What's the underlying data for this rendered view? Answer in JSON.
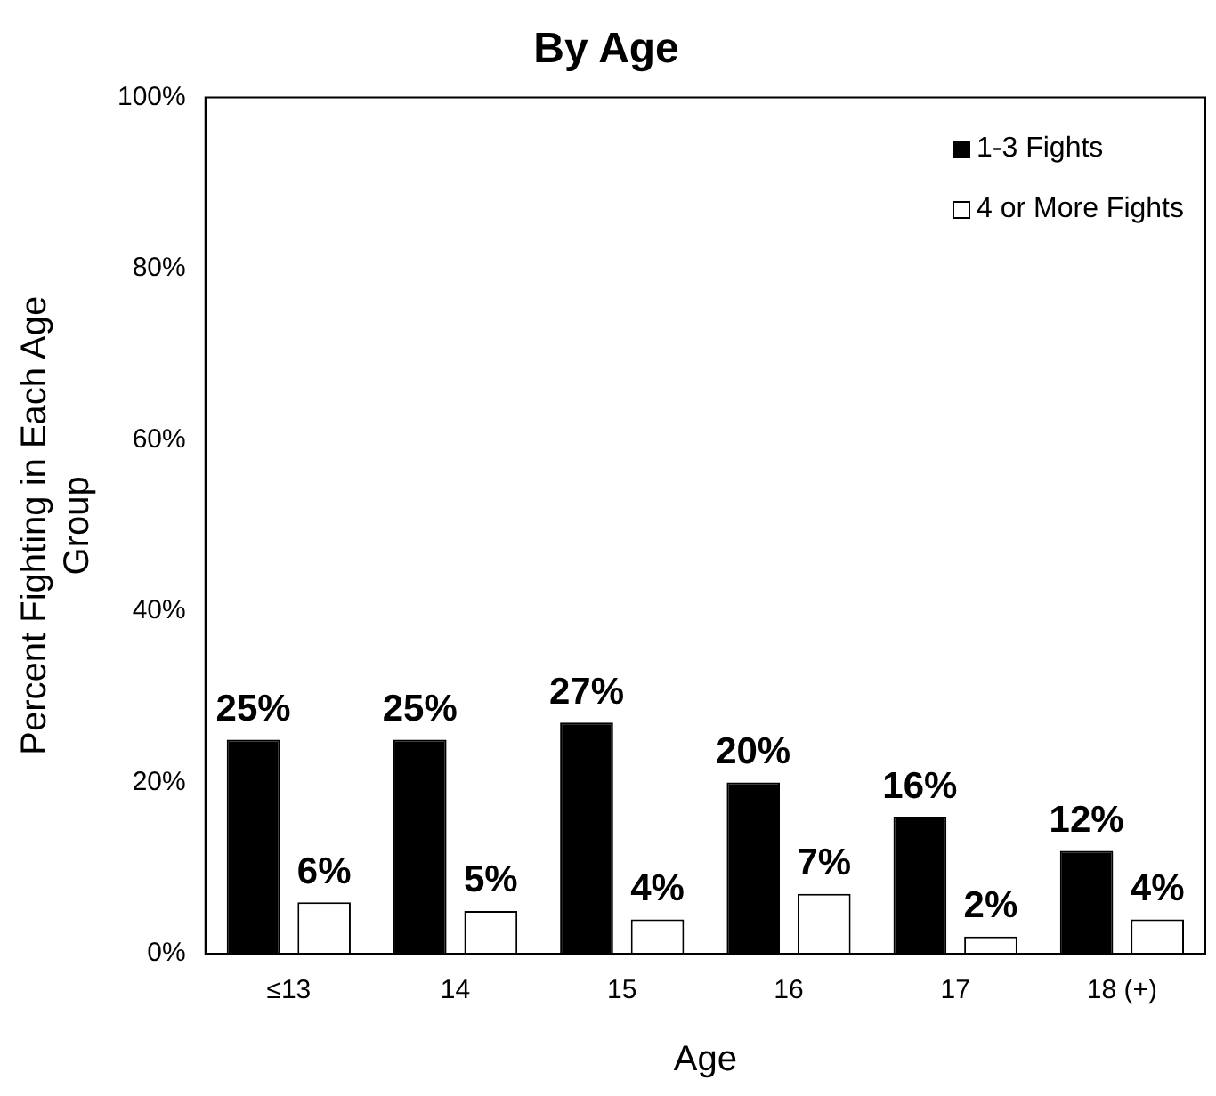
{
  "chart_data": {
    "type": "bar",
    "title": "By Age",
    "xlabel": "Age",
    "ylabel": "Percent Fighting in Each Age Group",
    "categories": [
      "≤13",
      "14",
      "15",
      "16",
      "17",
      "18 (+)"
    ],
    "series": [
      {
        "name": "1-3 Fights",
        "color": "#000000",
        "values": [
          25,
          25,
          27,
          20,
          16,
          12
        ],
        "value_labels": [
          "25%",
          "25%",
          "27%",
          "20%",
          "16%",
          "12%"
        ]
      },
      {
        "name": "4 or More Fights",
        "color": "#ffffff",
        "values": [
          6,
          5,
          4,
          7,
          2,
          4
        ],
        "value_labels": [
          "6%",
          "5%",
          "4%",
          "7%",
          "2%",
          "4%"
        ]
      }
    ],
    "ylim": [
      0,
      100
    ],
    "yticks": [
      {
        "value": 0,
        "label": "0%"
      },
      {
        "value": 20,
        "label": "20%"
      },
      {
        "value": 40,
        "label": "40%"
      },
      {
        "value": 60,
        "label": "60%"
      },
      {
        "value": 80,
        "label": "80%"
      },
      {
        "value": 100,
        "label": "100%"
      }
    ],
    "grid": false,
    "legend": "top right"
  }
}
